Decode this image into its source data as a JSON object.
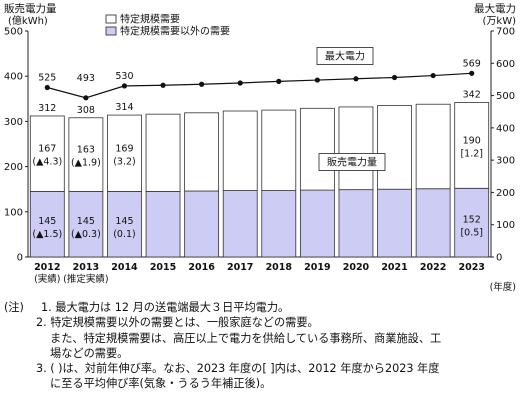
{
  "chart_data": {
    "type": "bar+line",
    "unit_left": "(億kWh)",
    "title_left": "販売電力量",
    "unit_right": "(万kW)",
    "title_right": "最大電力",
    "x_axis_suffix": "(年度)",
    "y_left_ticks": [
      "0",
      "100",
      "200",
      "300",
      "400",
      "500"
    ],
    "y_left_range": [
      0,
      500
    ],
    "y_right_ticks": [
      "0",
      "100",
      "200",
      "300",
      "400",
      "500",
      "600",
      "700"
    ],
    "y_right_range": [
      0,
      700
    ],
    "categories": [
      "2012",
      "2013",
      "2014",
      "2015",
      "2016",
      "2017",
      "2018",
      "2019",
      "2020",
      "2021",
      "2022",
      "2023"
    ],
    "category_sublabels": [
      "(実績)",
      "(推定実績)",
      "",
      "",
      "",
      "",
      "",
      "",
      "",
      "",
      "",
      ""
    ],
    "series": [
      {
        "name": "特定規模需要以外の需要",
        "color": "#ccccf5",
        "values": [
          145,
          145,
          145,
          145,
          146,
          147,
          147,
          148,
          149,
          150,
          151,
          152
        ],
        "labels": [
          "145",
          "145",
          "145",
          "",
          "",
          "",
          "",
          "",
          "",
          "",
          "",
          "152"
        ],
        "sublabels": [
          "(▲1.5)",
          "(▲0.3)",
          "(0.1)",
          "",
          "",
          "",
          "",
          "",
          "",
          "",
          "",
          "[0.5]"
        ]
      },
      {
        "name": "特定規模需要",
        "color": "#ffffff",
        "values": [
          167,
          163,
          169,
          171,
          173,
          176,
          178,
          181,
          183,
          185,
          187,
          190
        ],
        "labels": [
          "167",
          "163",
          "169",
          "",
          "",
          "",
          "",
          "",
          "",
          "",
          "",
          "190"
        ],
        "sublabels": [
          "(▲4.3)",
          "(▲1.9)",
          "(3.2)",
          "",
          "",
          "",
          "",
          "",
          "",
          "",
          "",
          "[1.2]"
        ]
      }
    ],
    "totals": [
      312,
      308,
      314,
      316,
      319,
      323,
      325,
      329,
      332,
      335,
      338,
      342
    ],
    "total_labels": [
      "312",
      "308",
      "314",
      "",
      "",
      "",
      "",
      "",
      "",
      "",
      "",
      "342"
    ],
    "line": {
      "name": "最大電力",
      "values": [
        525,
        493,
        530,
        532,
        535,
        539,
        544,
        548,
        552,
        556,
        562,
        569
      ],
      "labels": [
        "525",
        "493",
        "530",
        "",
        "",
        "",
        "",
        "",
        "",
        "",
        "",
        "569"
      ]
    },
    "callouts": {
      "line_label": "最大電力",
      "bar_label": "販売電力量"
    }
  },
  "notes": {
    "prefix": "(注)",
    "item1": "1. 最大電力は 12 月の送電端最大３日平均電力。",
    "item2": "2. 特定規模需要以外の需要とは、一般家庭などの需要。",
    "item2b": "また、特定規模需要は、高圧以上で電力を供給している事務所、商業施設、工",
    "item2c": "場などの需要。",
    "item3": "3. (  )は、対前年伸び率。なお、2023 年度の[  ]内は、2012 年度から2023 年度",
    "item3b": "に至る平均伸び率(気象・うるう年補正後)。"
  }
}
